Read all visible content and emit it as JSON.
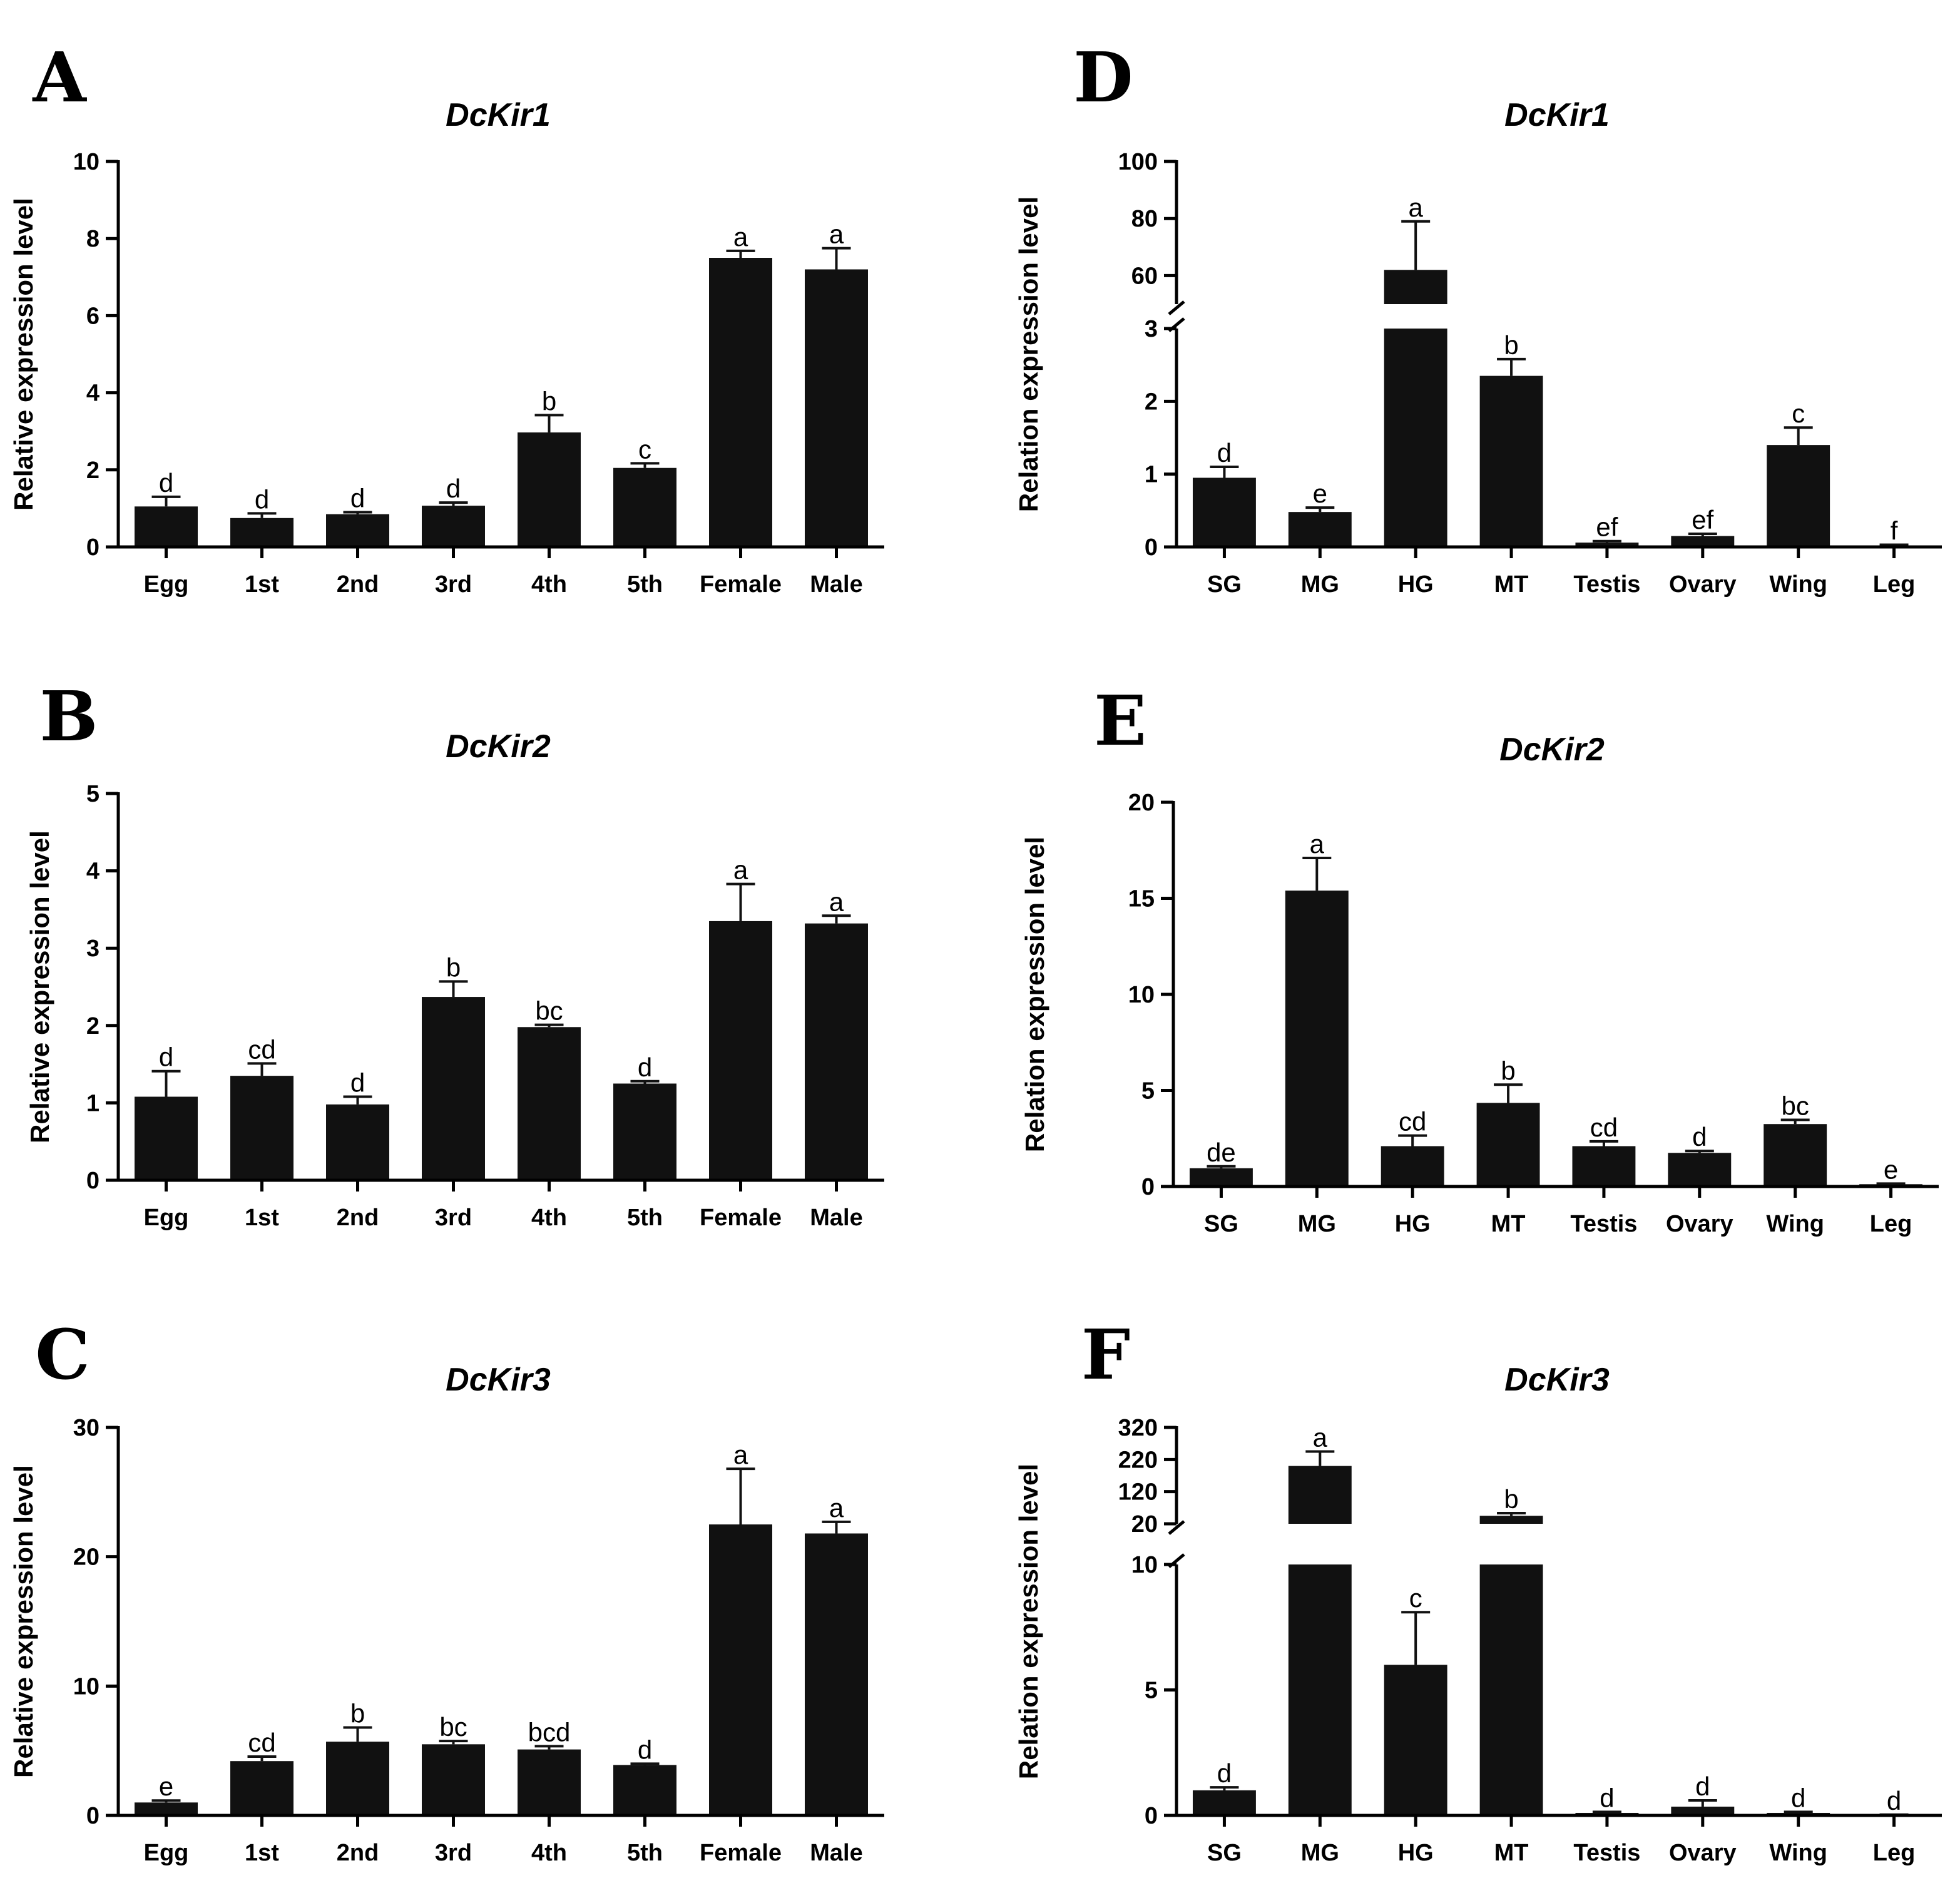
{
  "chart_data": [
    {
      "panel": "A",
      "type": "bar",
      "title": "DcKir1",
      "ylabel": "Relative expression level",
      "xlabel": "",
      "ylim": [
        0,
        10
      ],
      "yticks": [
        0,
        2,
        4,
        6,
        8,
        10
      ],
      "categories": [
        "Egg",
        "1st",
        "2nd",
        "3rd",
        "4th",
        "5th",
        "Female",
        "Male"
      ],
      "values": [
        1.05,
        0.75,
        0.85,
        1.07,
        2.97,
        2.05,
        7.5,
        7.2
      ],
      "errors": [
        0.25,
        0.12,
        0.05,
        0.08,
        0.45,
        0.12,
        0.18,
        0.55
      ],
      "significance": [
        "d",
        "d",
        "d",
        "d",
        "b",
        "c",
        "a",
        "a"
      ]
    },
    {
      "panel": "B",
      "type": "bar",
      "title": "DcKir2",
      "ylabel": "Relative expression level",
      "xlabel": "",
      "ylim": [
        0,
        5
      ],
      "yticks": [
        0,
        1,
        2,
        3,
        4,
        5
      ],
      "categories": [
        "Egg",
        "1st",
        "2nd",
        "3rd",
        "4th",
        "5th",
        "Female",
        "Male"
      ],
      "values": [
        1.08,
        1.35,
        0.98,
        2.37,
        1.98,
        1.25,
        3.35,
        3.32
      ],
      "errors": [
        0.33,
        0.16,
        0.1,
        0.2,
        0.03,
        0.03,
        0.48,
        0.1
      ],
      "significance": [
        "d",
        "cd",
        "d",
        "b",
        "bc",
        "d",
        "a",
        "a"
      ]
    },
    {
      "panel": "C",
      "type": "bar",
      "title": "DcKir3",
      "ylabel": "Relative expression level",
      "xlabel": "",
      "ylim": [
        0,
        30
      ],
      "yticks": [
        0,
        10,
        20,
        30
      ],
      "categories": [
        "Egg",
        "1st",
        "2nd",
        "3rd",
        "4th",
        "5th",
        "Female",
        "Male"
      ],
      "values": [
        1.0,
        4.2,
        5.7,
        5.5,
        5.1,
        3.9,
        22.5,
        21.8
      ],
      "errors": [
        0.15,
        0.35,
        1.1,
        0.25,
        0.25,
        0.1,
        4.3,
        0.9
      ],
      "significance": [
        "e",
        "cd",
        "b",
        "bc",
        "bcd",
        "d",
        "a",
        "a"
      ]
    },
    {
      "panel": "D",
      "type": "bar",
      "title": "DcKir1",
      "ylabel": "Relation expression level",
      "xlabel": "",
      "ylim": [
        0,
        100
      ],
      "axis_break": [
        3,
        50
      ],
      "yticks": [
        0,
        1,
        2,
        3,
        60,
        80,
        100
      ],
      "categories": [
        "SG",
        "MG",
        "HG",
        "MT",
        "Testis",
        "Ovary",
        "Wing",
        "Leg"
      ],
      "values": [
        0.95,
        0.48,
        62.0,
        2.35,
        0.06,
        0.15,
        1.4,
        0.02
      ],
      "errors": [
        0.15,
        0.06,
        17.0,
        0.23,
        0.02,
        0.03,
        0.24,
        0.01
      ],
      "significance": [
        "d",
        "e",
        "a",
        "b",
        "ef",
        "ef",
        "c",
        "f"
      ]
    },
    {
      "panel": "E",
      "type": "bar",
      "title": "DcKir2",
      "ylabel": "Relation expression level",
      "xlabel": "",
      "ylim": [
        0,
        20
      ],
      "yticks": [
        0,
        5,
        10,
        15,
        20
      ],
      "categories": [
        "SG",
        "MG",
        "HG",
        "MT",
        "Testis",
        "Ovary",
        "Wing",
        "Leg"
      ],
      "values": [
        0.95,
        15.4,
        2.1,
        4.35,
        2.1,
        1.75,
        3.25,
        0.12
      ],
      "errors": [
        0.1,
        1.7,
        0.55,
        0.95,
        0.25,
        0.1,
        0.22,
        0.03
      ],
      "significance": [
        "de",
        "a",
        "cd",
        "b",
        "cd",
        "d",
        "bc",
        "e"
      ]
    },
    {
      "panel": "F",
      "type": "bar",
      "title": "DcKir3",
      "ylabel": "Relation expression level",
      "xlabel": "",
      "ylim": [
        0,
        320
      ],
      "axis_break": [
        10,
        20
      ],
      "yticks": [
        0,
        5,
        10,
        20,
        120,
        220,
        320
      ],
      "categories": [
        "SG",
        "MG",
        "HG",
        "MT",
        "Testis",
        "Ovary",
        "Wing",
        "Leg"
      ],
      "values": [
        1.0,
        200.0,
        6.0,
        45.0,
        0.1,
        0.35,
        0.1,
        0.02
      ],
      "errors": [
        0.12,
        45.0,
        2.1,
        8.0,
        0.04,
        0.25,
        0.04,
        0.01
      ],
      "significance": [
        "d",
        "a",
        "c",
        "b",
        "d",
        "d",
        "d",
        "d"
      ]
    }
  ]
}
